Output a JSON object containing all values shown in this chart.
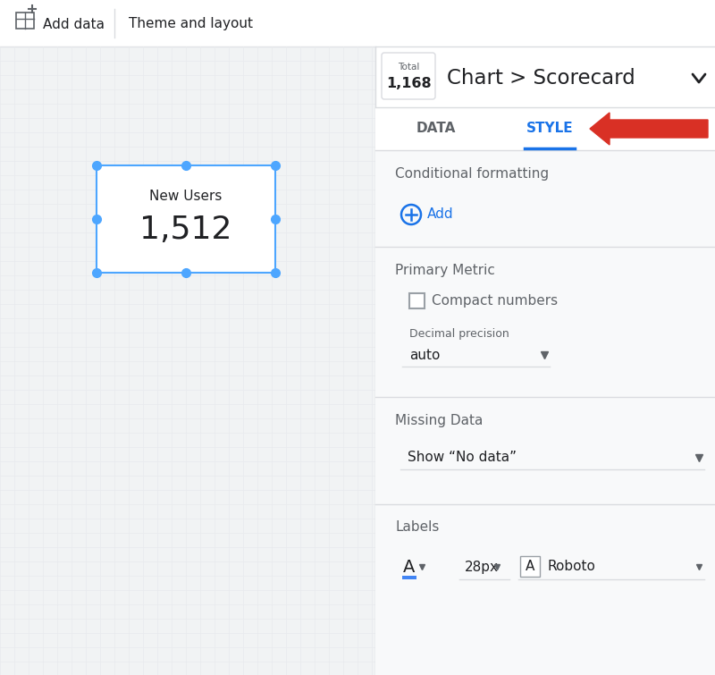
{
  "bg_color": "#f1f3f4",
  "panel_bg": "#f8f9fa",
  "white": "#ffffff",
  "border_color": "#dadce0",
  "blue": "#1a73e8",
  "red": "#d93025",
  "text_dark": "#202124",
  "text_gray": "#5f6368",
  "text_light": "#80868b",
  "header_top_label": "Total",
  "header_number": "1,168",
  "breadcrumb": "Chart > Scorecard",
  "tab_data": "DATA",
  "tab_style": "STYLE",
  "section1_title": "Conditional formatting",
  "add_label": "Add",
  "section2_title": "Primary Metric",
  "checkbox_label": "Compact numbers",
  "dropdown1_label": "Decimal precision",
  "dropdown1_value": "auto",
  "section3_title": "Missing Data",
  "dropdown2_value": "Show “No data”",
  "section4_title": "Labels",
  "font_size_label": "28px",
  "font_name": "Roboto",
  "scorecard_label": "New Users",
  "scorecard_value": "1,512",
  "scorecard_border_color": "#4da6ff",
  "grid_color": "#e8eaed"
}
